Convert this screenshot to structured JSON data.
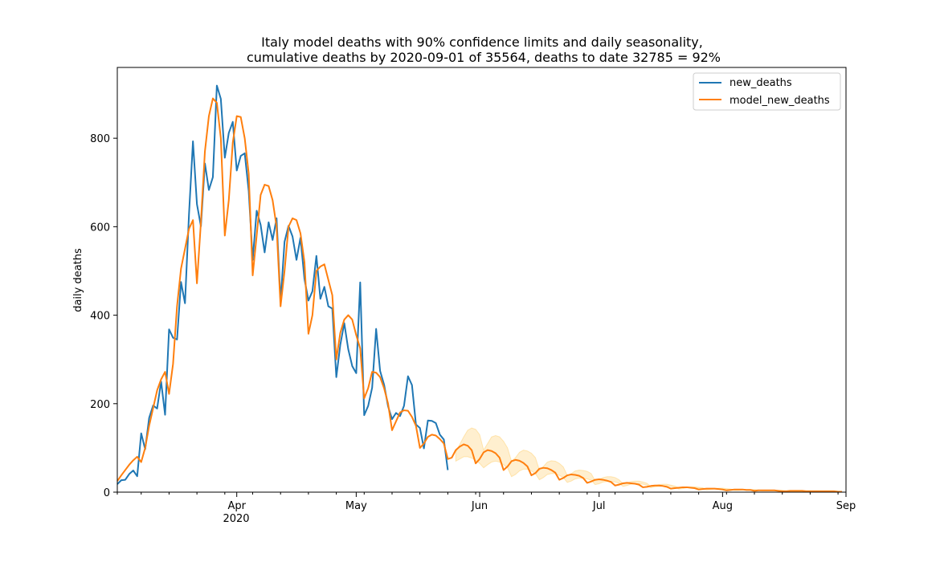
{
  "chart_data": {
    "type": "line",
    "title": "Italy model deaths with 90% confidence limits and daily seasonality,",
    "subtitle": "cumulative deaths by 2020-09-01 of 35564, deaths to date 32785 = 92%",
    "xlabel": "",
    "ylabel": "daily deaths",
    "xlim": [
      "2020-03-02",
      "2020-09-01"
    ],
    "ylim": [
      0,
      960
    ],
    "x_ticks": [
      {
        "date": "2020-04-01",
        "label": "Apr"
      },
      {
        "date": "2020-05-01",
        "label": "May"
      },
      {
        "date": "2020-06-01",
        "label": "Jun"
      },
      {
        "date": "2020-07-01",
        "label": "Jul"
      },
      {
        "date": "2020-08-01",
        "label": "Aug"
      },
      {
        "date": "2020-09-01",
        "label": "Sep"
      }
    ],
    "x_year_label": "2020",
    "y_ticks": [
      0,
      200,
      400,
      600,
      800
    ],
    "grid": false,
    "legend_position": "upper right",
    "series": [
      {
        "name": "new_deaths",
        "color": "#1f77b4",
        "start_date": "2020-03-02",
        "values": [
          18,
          27,
          28,
          41,
          49,
          36,
          133,
          97,
          168,
          196,
          189,
          250,
          175,
          368,
          349,
          345,
          475,
          427,
          627,
          793,
          651,
          601,
          743,
          683,
          712,
          919,
          889,
          756,
          812,
          837,
          727,
          760,
          766,
          681,
          525,
          636,
          604,
          542,
          610,
          570,
          619,
          431,
          566,
          602,
          578,
          525,
          575,
          482,
          433,
          454,
          534,
          437,
          464,
          420,
          415,
          260,
          333,
          382,
          323,
          285,
          269,
          474,
          174,
          195,
          236,
          369,
          274,
          243,
          194,
          165,
          179,
          172,
          195,
          262,
          242,
          153,
          145,
          99,
          162,
          161,
          156,
          130,
          119,
          50
        ]
      },
      {
        "name": "model_new_deaths",
        "color": "#ff7f0e",
        "start_date": "2020-03-02",
        "values": [
          25,
          38,
          50,
          62,
          72,
          80,
          68,
          100,
          150,
          190,
          230,
          255,
          272,
          222,
          290,
          420,
          505,
          550,
          595,
          615,
          472,
          610,
          770,
          850,
          890,
          880,
          800,
          580,
          660,
          790,
          850,
          848,
          800,
          720,
          490,
          580,
          672,
          695,
          692,
          660,
          600,
          420,
          500,
          600,
          619,
          615,
          585,
          520,
          358,
          400,
          500,
          510,
          515,
          480,
          445,
          300,
          360,
          390,
          400,
          390,
          355,
          325,
          212,
          235,
          272,
          270,
          260,
          235,
          200,
          140,
          160,
          180,
          185,
          184,
          170,
          150,
          100,
          110,
          125,
          130,
          128,
          120,
          110,
          75,
          78,
          95,
          103,
          108,
          105,
          95,
          65,
          75,
          90,
          95,
          93,
          88,
          78,
          50,
          58,
          70,
          73,
          71,
          66,
          58,
          38,
          43,
          53,
          55,
          54,
          50,
          44,
          28,
          32,
          38,
          40,
          39,
          37,
          32,
          21,
          24,
          28,
          29,
          28,
          26,
          23,
          15,
          17,
          20,
          21,
          20,
          19,
          17,
          11,
          12,
          14,
          15,
          15,
          14,
          12,
          8,
          9,
          10,
          11,
          11,
          10,
          9,
          6,
          7,
          8,
          8,
          8,
          7,
          6,
          4,
          5,
          6,
          6,
          6,
          5,
          5,
          3,
          4,
          4,
          4,
          4,
          4,
          3,
          2,
          2,
          3,
          3,
          3,
          3,
          2,
          2,
          2,
          2,
          2,
          2,
          2,
          2,
          1,
          1
        ]
      }
    ],
    "confidence_band": {
      "level": "90%",
      "color": "#ffbf40",
      "start_date": "2020-05-26",
      "upper": [
        90,
        108,
        125,
        140,
        145,
        142,
        130,
        95,
        110,
        125,
        128,
        125,
        115,
        100,
        70,
        78,
        90,
        95,
        93,
        88,
        78,
        50,
        58,
        68,
        71,
        70,
        65,
        57,
        38,
        42,
        48,
        50,
        49,
        47,
        42,
        26,
        29,
        33,
        35,
        35,
        33,
        28,
        19,
        21,
        24,
        25,
        25,
        23,
        20,
        13,
        15,
        17,
        18,
        18,
        16,
        14,
        10,
        10,
        12,
        12,
        12,
        11,
        10,
        6,
        7,
        8,
        9,
        9,
        8,
        7,
        5,
        5,
        6,
        6,
        6,
        6,
        5,
        3,
        4,
        4,
        4,
        4,
        4,
        3,
        2,
        2,
        3,
        3,
        3,
        3,
        2,
        2,
        2,
        2,
        2,
        2,
        2,
        1
      ],
      "lower": [
        70,
        75,
        80,
        80,
        77,
        72,
        65,
        55,
        62,
        68,
        70,
        68,
        62,
        55,
        35,
        40,
        48,
        52,
        52,
        48,
        42,
        28,
        33,
        40,
        42,
        42,
        38,
        33,
        22,
        25,
        30,
        32,
        31,
        30,
        27,
        17,
        19,
        23,
        24,
        24,
        23,
        20,
        13,
        15,
        18,
        19,
        19,
        18,
        16,
        10,
        12,
        13,
        14,
        14,
        13,
        11,
        7,
        8,
        10,
        10,
        10,
        9,
        8,
        5,
        6,
        7,
        7,
        7,
        6,
        6,
        4,
        4,
        5,
        5,
        5,
        5,
        4,
        3,
        3,
        3,
        3,
        3,
        3,
        3,
        2,
        2,
        2,
        2,
        2,
        2,
        2,
        1,
        1,
        1,
        1,
        1,
        1,
        1
      ]
    }
  }
}
